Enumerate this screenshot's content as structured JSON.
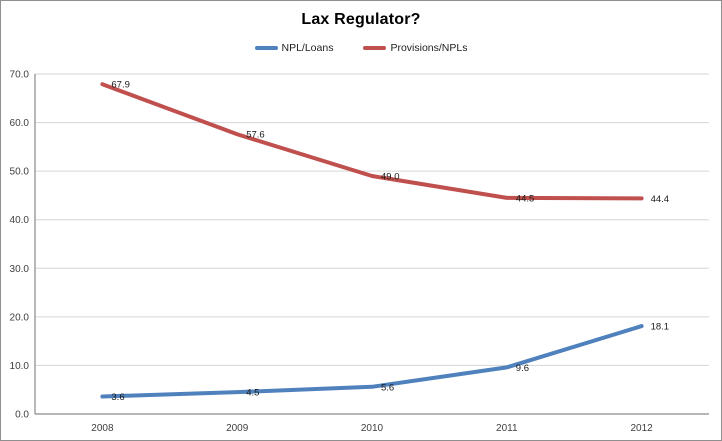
{
  "window": {
    "background": "#ffffff",
    "border_color": "#8f8f8f"
  },
  "chart_data": {
    "type": "line",
    "title": "Lax Regulator?",
    "categories": [
      "2008",
      "2009",
      "2010",
      "2011",
      "2012"
    ],
    "series": [
      {
        "name": "NPL/Loans",
        "color": "#4f81bd",
        "values": [
          3.6,
          4.5,
          5.6,
          9.6,
          18.1
        ],
        "labels": [
          "3.6",
          "4.5",
          "5.6",
          "9.6",
          "18.1"
        ]
      },
      {
        "name": "Provisions/NPLs",
        "color": "#c0504d",
        "values": [
          67.9,
          57.6,
          49.0,
          44.5,
          44.4
        ],
        "labels": [
          "67.9",
          "57.6",
          "49.0",
          "44.5",
          "44.4"
        ]
      }
    ],
    "xlabel": "",
    "ylabel": "",
    "ylim": [
      0,
      70
    ],
    "ytick_step": 10,
    "ytick_labels": [
      "0.0",
      "10.0",
      "20.0",
      "30.0",
      "40.0",
      "50.0",
      "60.0",
      "70.0"
    ],
    "grid": true,
    "data_labels": true,
    "legend_position": "top",
    "gridline_color": "#d6d6d6",
    "axis_line_color": "#8a8a8a",
    "tick_label_color": "#3f3f3f",
    "data_label_color": "#1a1a1a"
  }
}
